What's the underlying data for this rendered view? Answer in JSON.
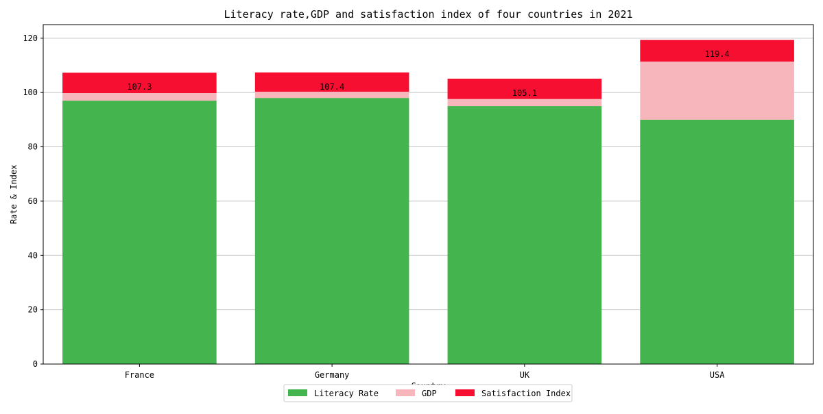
{
  "chart_data": {
    "type": "bar",
    "stacked": true,
    "title": "Literacy rate,GDP and satisfaction index of four countries in 2021",
    "xlabel": "Country",
    "ylabel": "Rate & Index",
    "categories": [
      "France",
      "Germany",
      "UK",
      "USA"
    ],
    "ylim": [
      0,
      125
    ],
    "yticks": [
      0,
      20,
      40,
      60,
      80,
      100,
      120
    ],
    "grid": "horizontal",
    "legend_position": "bottom-center",
    "series": [
      {
        "name": "Literacy Rate",
        "color": "#44b54e",
        "values": [
          97.0,
          98.0,
          95.0,
          90.0
        ]
      },
      {
        "name": "GDP",
        "color": "#f7b6bb",
        "values": [
          2.8,
          2.3,
          2.6,
          21.4
        ]
      },
      {
        "name": "Satisfaction Index",
        "color": "#f70f31",
        "values": [
          7.5,
          7.1,
          7.5,
          8.0
        ]
      }
    ],
    "totals_labels": [
      "107.3",
      "107.4",
      "105.1",
      "119.4"
    ]
  }
}
